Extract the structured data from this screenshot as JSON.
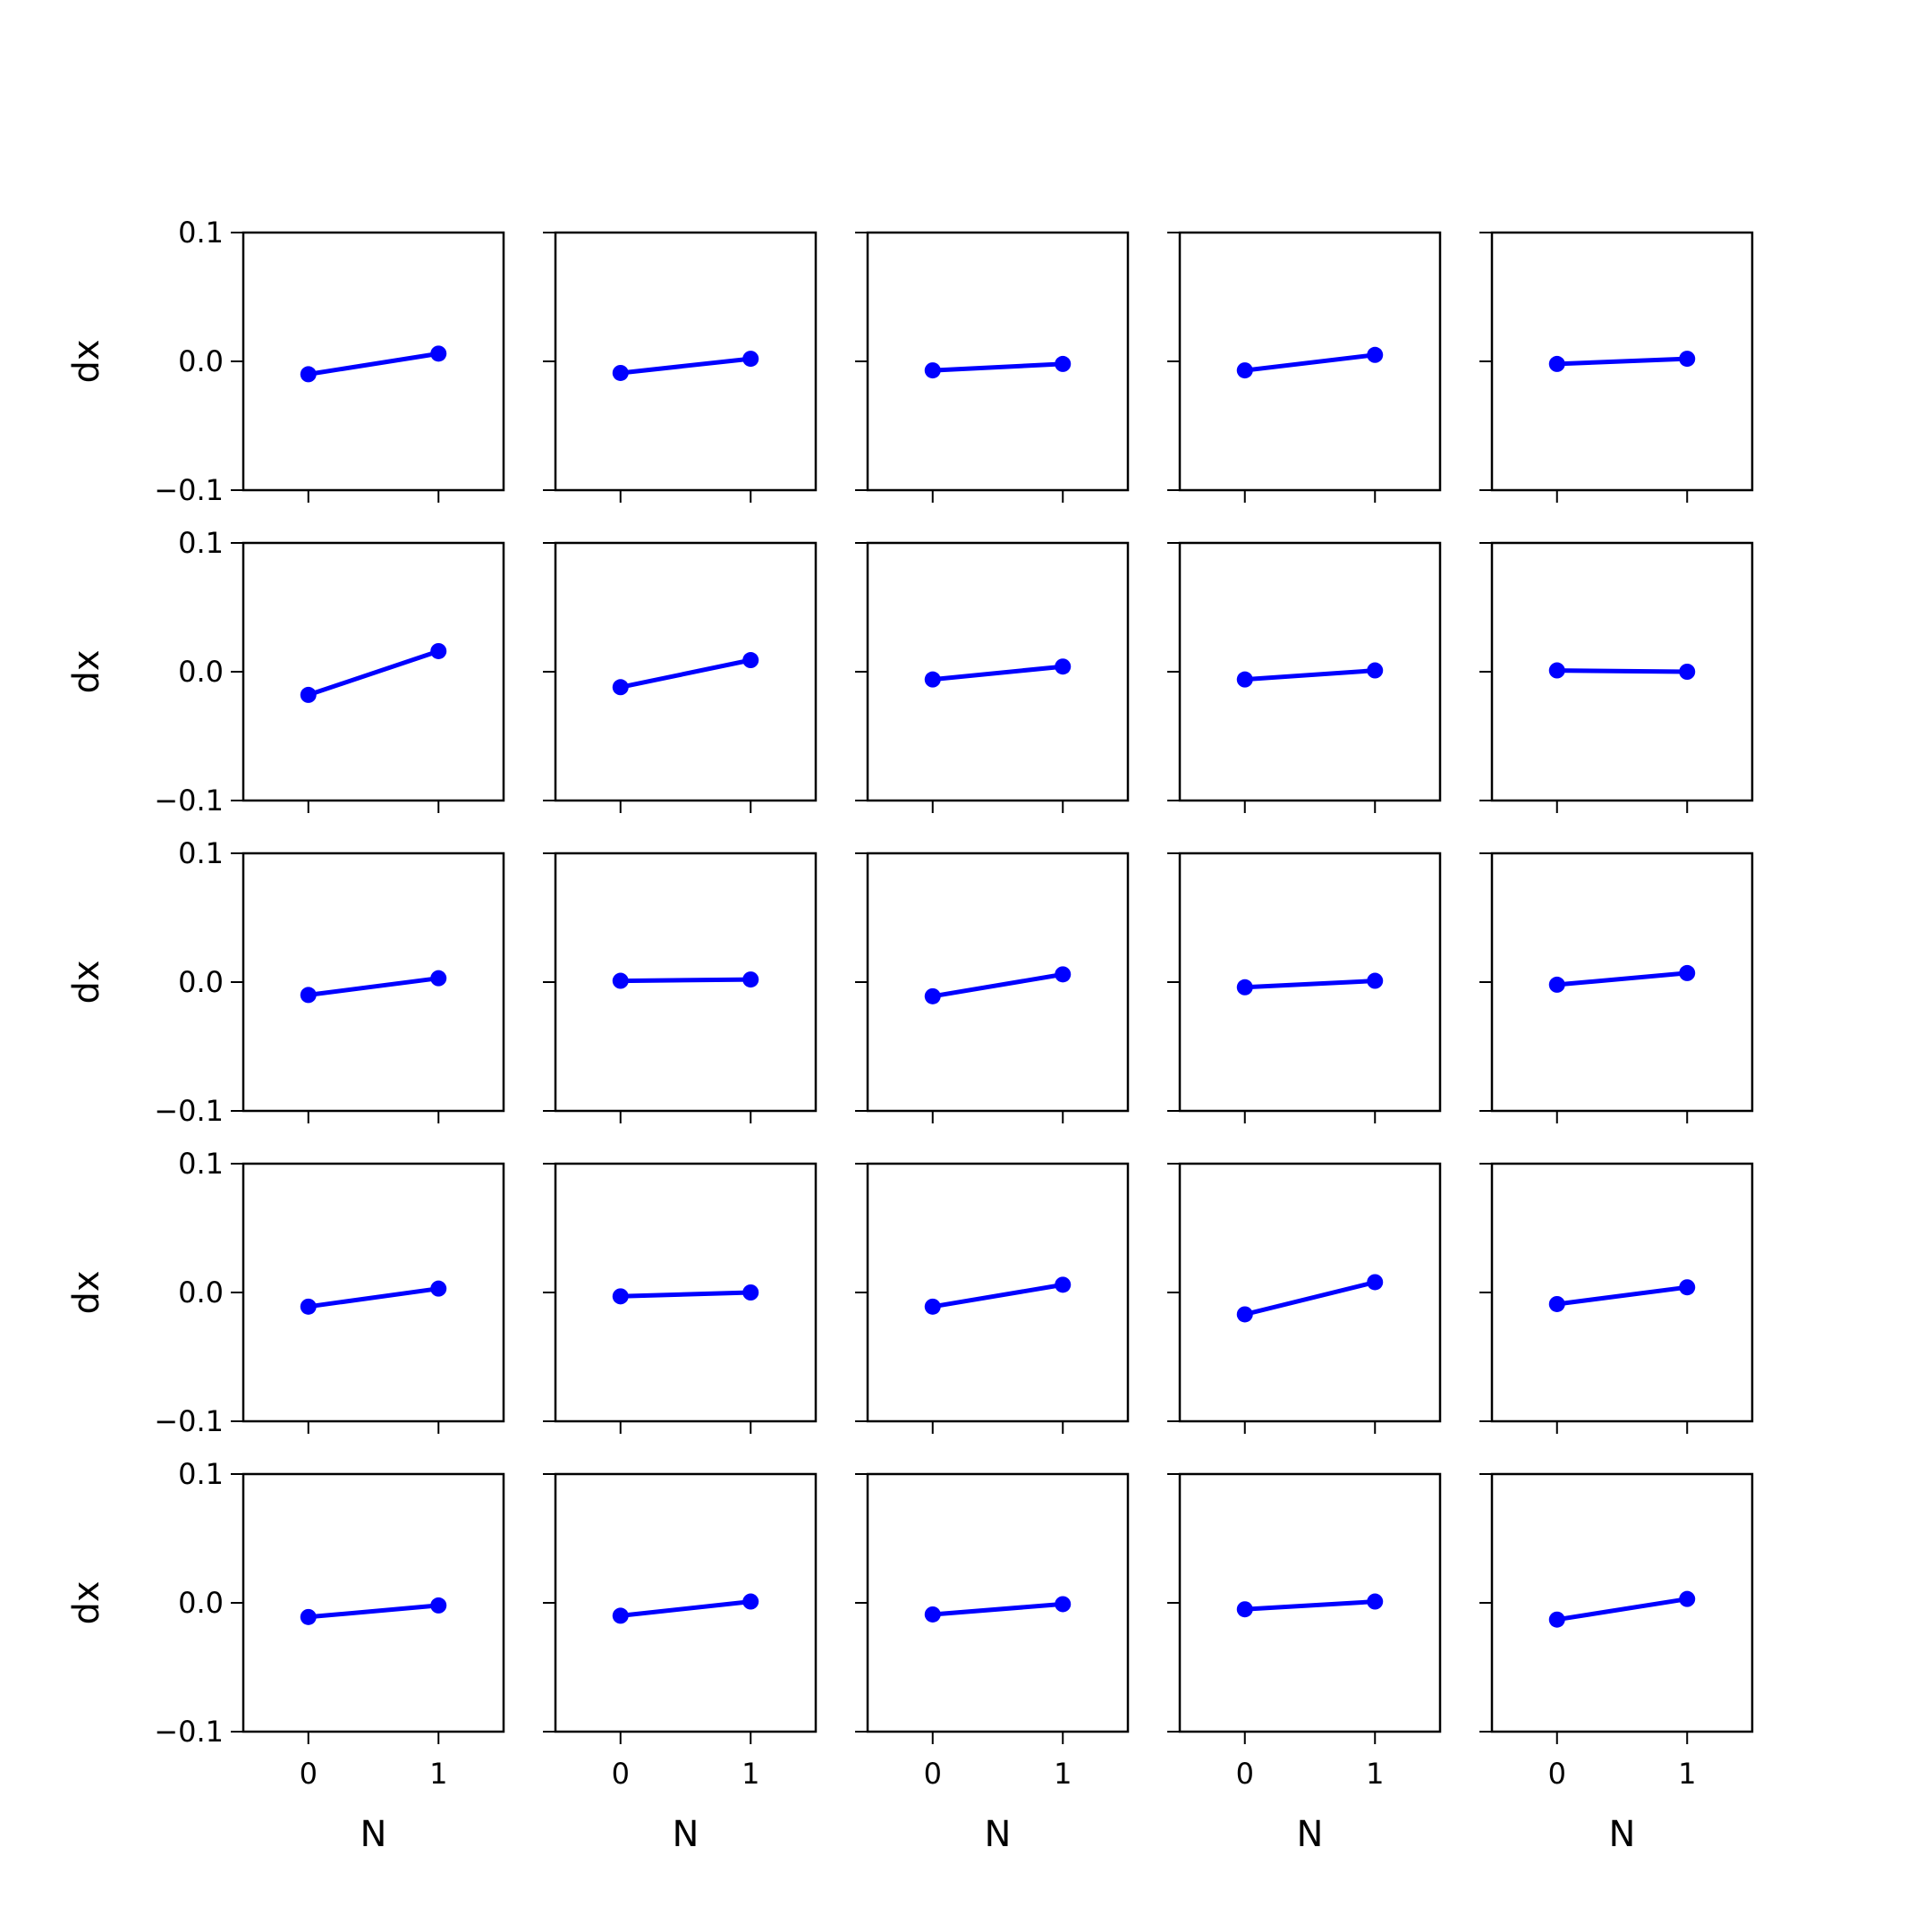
{
  "chart_data": {
    "type": "line",
    "layout": "5x5 grid of subplots",
    "color": "#0000ff",
    "marker": "circle",
    "shared_x": true,
    "shared_y": true,
    "x": [
      0,
      1
    ],
    "xlabel": "N",
    "ylabel": "dx",
    "xlim": [
      -0.5,
      1.5
    ],
    "ylim": [
      -0.1,
      0.1
    ],
    "xticks": [
      0,
      1
    ],
    "xtick_labels": [
      "0",
      "1"
    ],
    "yticks": [
      -0.1,
      0.0,
      0.1
    ],
    "ytick_labels": [
      "−0.1",
      "0.0",
      "0.1"
    ],
    "grid": false,
    "panels": [
      [
        [
          -0.01,
          0.006
        ],
        [
          -0.009,
          0.002
        ],
        [
          -0.007,
          -0.002
        ],
        [
          -0.007,
          0.005
        ],
        [
          -0.002,
          0.002
        ]
      ],
      [
        [
          -0.018,
          0.016
        ],
        [
          -0.012,
          0.009
        ],
        [
          -0.006,
          0.004
        ],
        [
          -0.006,
          0.001
        ],
        [
          0.001,
          0.0
        ]
      ],
      [
        [
          -0.01,
          0.003
        ],
        [
          0.001,
          0.002
        ],
        [
          -0.011,
          0.006
        ],
        [
          -0.004,
          0.001
        ],
        [
          -0.002,
          0.007
        ]
      ],
      [
        [
          -0.011,
          0.003
        ],
        [
          -0.003,
          0.0
        ],
        [
          -0.011,
          0.006
        ],
        [
          -0.017,
          0.008
        ],
        [
          -0.009,
          0.004
        ]
      ],
      [
        [
          -0.011,
          -0.002
        ],
        [
          -0.01,
          0.001
        ],
        [
          -0.009,
          -0.001
        ],
        [
          -0.005,
          0.001
        ],
        [
          -0.013,
          0.003
        ]
      ]
    ]
  }
}
